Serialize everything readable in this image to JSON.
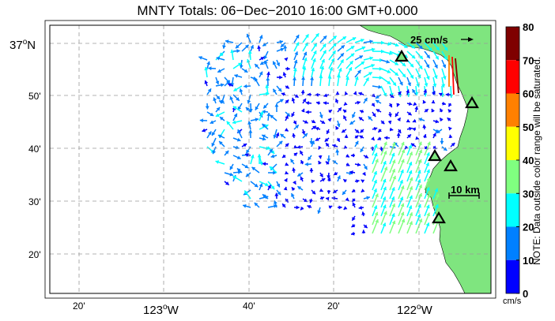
{
  "map": {
    "title": "MNTY Totals: 06−Dec−2010 16:00 GMT+0.000",
    "lat_labels": [
      {
        "text": "37",
        "deg": true,
        "hemi": "N"
      },
      {
        "text": "50'"
      },
      {
        "text": "40'"
      },
      {
        "text": "30'"
      },
      {
        "text": "20'"
      }
    ],
    "lon_labels": [
      {
        "text": "20'"
      },
      {
        "text": "123",
        "deg": true,
        "hemi": "W"
      },
      {
        "text": "40'"
      },
      {
        "text": "20'"
      },
      {
        "text": "122",
        "deg": true,
        "hemi": "W"
      }
    ],
    "scale_arrow_label": "25 cm/s",
    "scale_bar_label": "10 km",
    "land_color": "#7fe57f",
    "station_marker": "triangle-icon"
  },
  "colorbar": {
    "ticks": [
      "80",
      "70",
      "60",
      "50",
      "40",
      "30",
      "20",
      "10",
      "0"
    ],
    "colors": [
      "#7f0000",
      "#ff0000",
      "#ff8000",
      "#ffff00",
      "#80ff80",
      "#00ffff",
      "#0080ff",
      "#0000ff"
    ],
    "units": "cm/s",
    "note": "NOTE: Data outside color range will be saturated."
  }
}
